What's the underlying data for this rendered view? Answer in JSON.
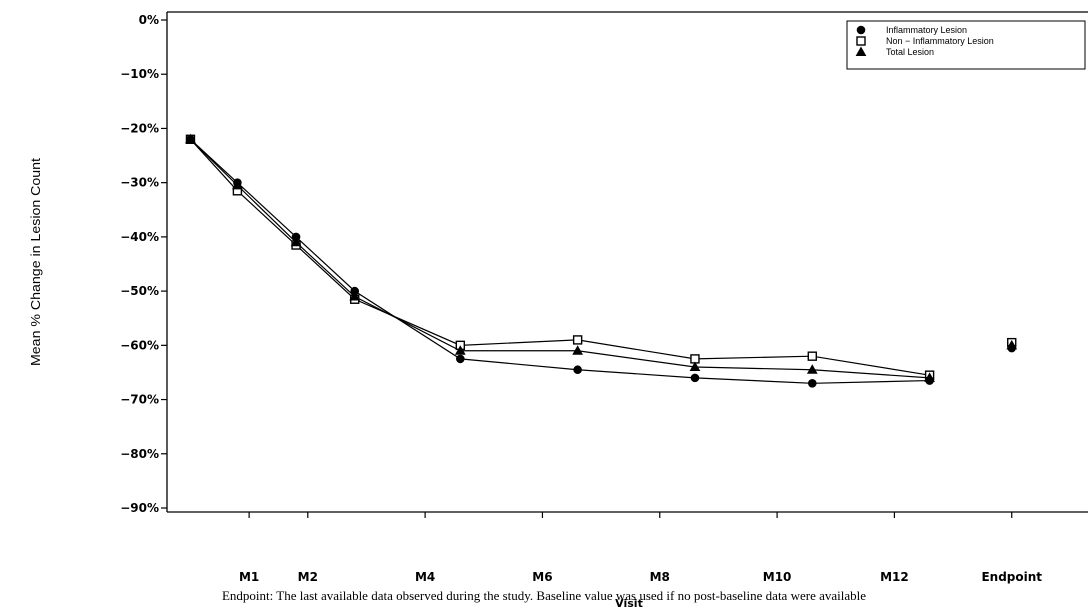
{
  "chart_data": {
    "type": "line",
    "title": "",
    "xlabel": "Visit",
    "ylabel": "Mean % Change in Lesion Count",
    "ylim": [
      -90,
      0
    ],
    "y_ticks": [
      "0%",
      "−10%",
      "−20%",
      "−30%",
      "−40%",
      "−50%",
      "−60%",
      "−70%",
      "−80%",
      "−90%"
    ],
    "y_tick_values": [
      0,
      -10,
      -20,
      -30,
      -40,
      -50,
      -60,
      -70,
      -80,
      -90
    ],
    "x_tick_labels": [
      "M1",
      "M2",
      "M4",
      "M6",
      "M8",
      "M10",
      "M12",
      "Endpoint"
    ],
    "x_tick_positions": [
      1,
      2,
      4,
      6,
      8,
      10,
      12,
      14
    ],
    "xlim": [
      -0.4,
      15.3
    ],
    "legend_position": "top-right",
    "series": [
      {
        "name": "Inflammatory Lesion",
        "marker": "filled-circle",
        "x": [
          0,
          0.8,
          1.8,
          2.8,
          4.6,
          6.6,
          8.6,
          10.6,
          12.6
        ],
        "y": [
          -22,
          -30,
          -40,
          -50,
          -62.5,
          -64.5,
          -66,
          -67,
          -66.5
        ],
        "endpoint": -60.5
      },
      {
        "name": "Non − Inflammatory Lesion",
        "marker": "open-square",
        "x": [
          0,
          0.8,
          1.8,
          2.8,
          4.6,
          6.6,
          8.6,
          10.6,
          12.6
        ],
        "y": [
          -22,
          -31.5,
          -41.5,
          -51.5,
          -60,
          -59,
          -62.5,
          -62,
          -65.5
        ],
        "endpoint": -59.5
      },
      {
        "name": "Total Lesion",
        "marker": "filled-triangle",
        "x": [
          0,
          0.8,
          1.8,
          2.8,
          4.6,
          6.6,
          8.6,
          10.6,
          12.6
        ],
        "y": [
          -22,
          -30.5,
          -41,
          -51,
          -61,
          -61,
          -64,
          -64.5,
          -66
        ],
        "endpoint": -60
      }
    ]
  },
  "footnote": "Endpoint: The last available data observed during the study.  Baseline value was used if no post-baseline data were available"
}
